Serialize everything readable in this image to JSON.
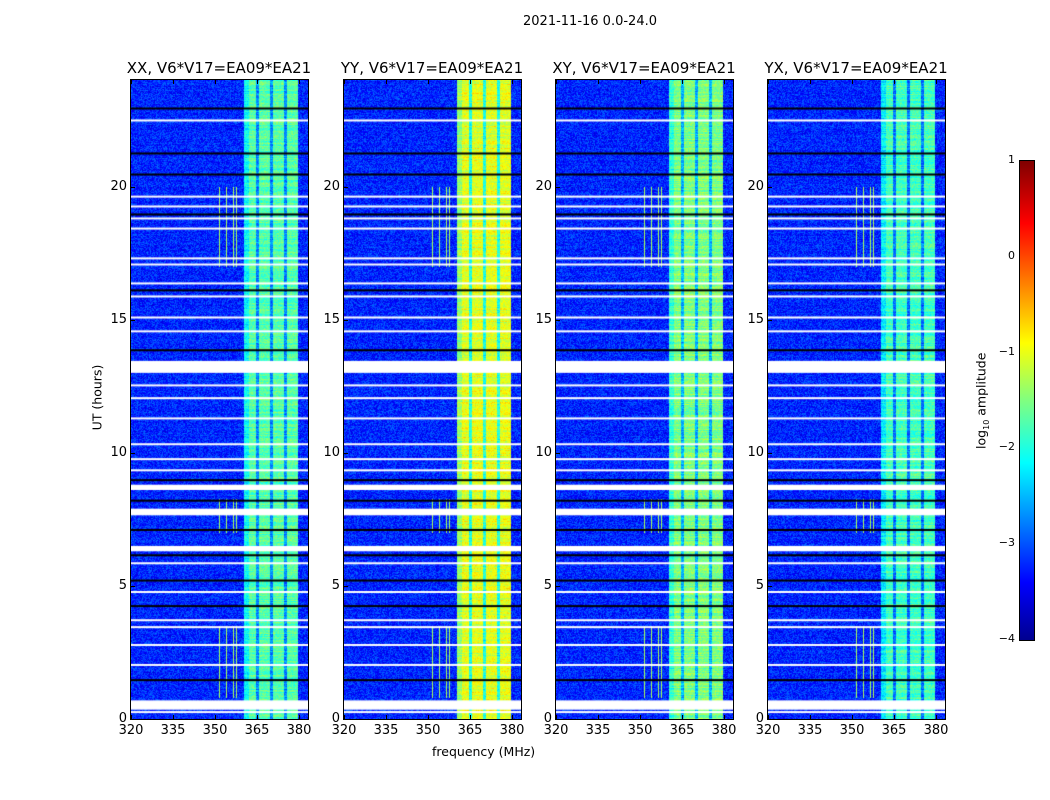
{
  "chart_data": {
    "type": "heatmap",
    "title": "2021-11-16 0.0-24.0",
    "xlabel": "frequency (MHz)",
    "ylabel": "UT (hours)",
    "xlim": [
      320,
      383.2
    ],
    "ylim": [
      0,
      24
    ],
    "xticks": [
      "320",
      "335",
      "350",
      "365",
      "380"
    ],
    "xtick_values": [
      320,
      335,
      350,
      365,
      380
    ],
    "yticks": [
      "0",
      "5",
      "10",
      "15",
      "20"
    ],
    "ytick_values": [
      0,
      5,
      10,
      15,
      20
    ],
    "colormap": "jet",
    "colorbar": {
      "label": "log10 amplitude",
      "label_main": "log",
      "label_sub": "10",
      "label_rest": " amplitude",
      "range": [
        -4,
        1
      ],
      "ticks": [
        "1",
        "0",
        "−1",
        "−2",
        "−3",
        "−4"
      ],
      "tick_values": [
        1,
        0,
        -1,
        -2,
        -3,
        -4
      ]
    },
    "background_level": -3.2,
    "active_band_mhz": [
      360,
      379.5
    ],
    "subband_gaps_mhz": [
      365,
      370,
      375
    ],
    "flagged_rows_hours": [
      22.48,
      19.62,
      19.25,
      18.8,
      18.42,
      17.3,
      17.07,
      16.36,
      15.87,
      15.08,
      14.56,
      12.53,
      12.05,
      11.29,
      10.32,
      9.76,
      9.34,
      5.85,
      4.77,
      3.71,
      3.45,
      2.78,
      2.03,
      0.26
    ],
    "flagged_blocks_hours": [
      [
        13.0,
        13.45
      ],
      [
        8.6,
        8.8
      ],
      [
        7.65,
        7.9
      ],
      [
        6.3,
        6.5
      ],
      [
        0.35,
        0.7
      ]
    ],
    "gap_rows_hours": [
      22.93,
      21.24,
      20.45,
      18.95,
      16.1,
      13.85,
      8.97,
      8.2,
      7.1,
      6.15,
      5.2,
      4.24,
      1.46
    ],
    "rfi_lines_mhz": [
      351.5,
      354,
      356.5,
      357.5
    ],
    "panels": [
      {
        "title": "XX, V6*V17=EA09*EA21",
        "band_level": -1.7
      },
      {
        "title": "YY, V6*V17=EA09*EA21",
        "band_level": -1.0
      },
      {
        "title": "XY, V6*V17=EA09*EA21",
        "band_level": -1.5
      },
      {
        "title": "YX, V6*V17=EA09*EA21",
        "band_level": -1.8
      }
    ]
  }
}
